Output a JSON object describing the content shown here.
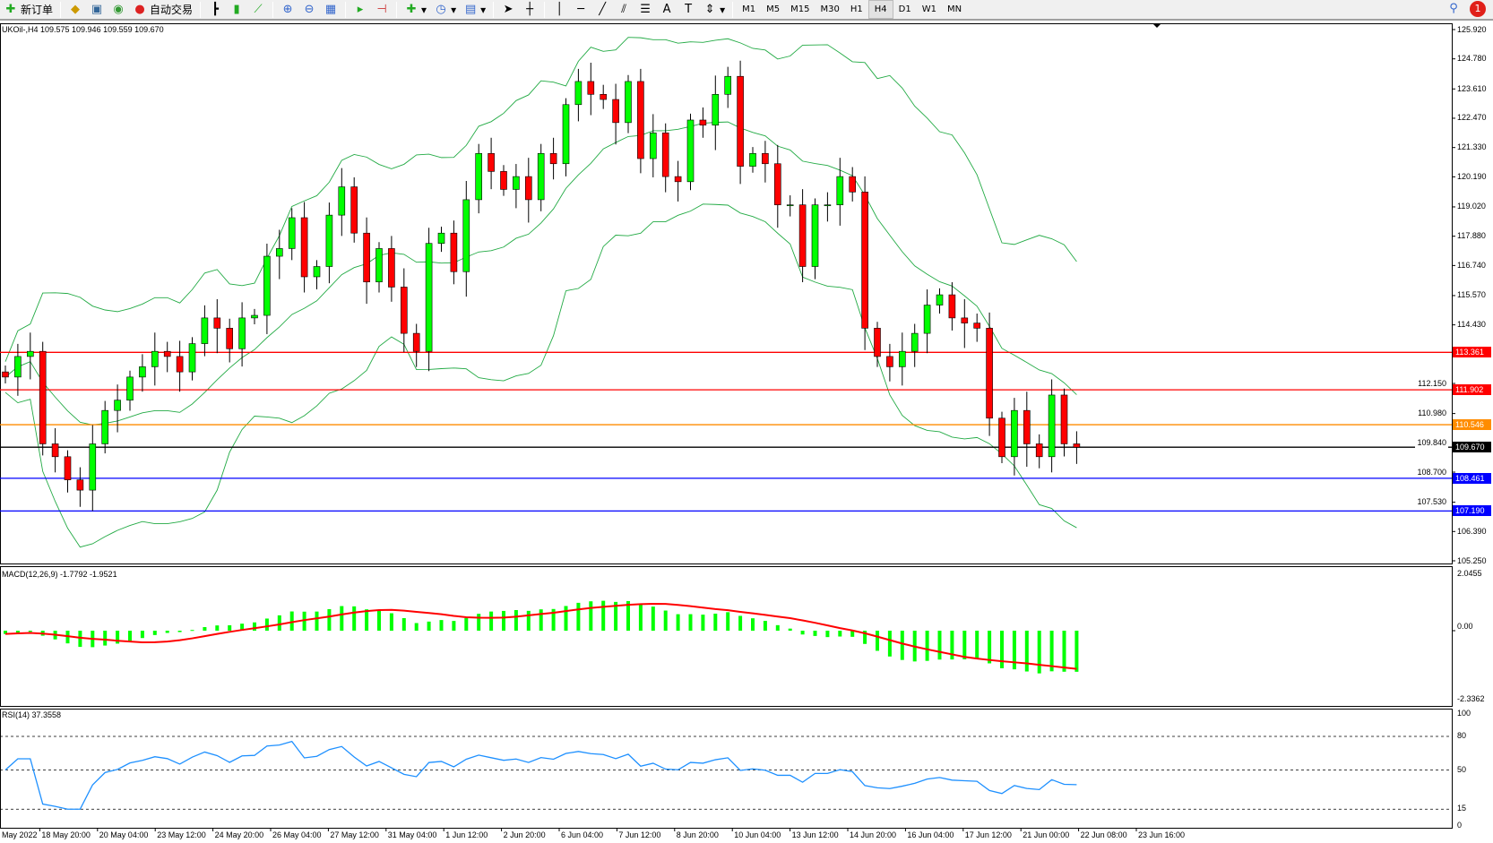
{
  "toolbar": {
    "new_order": "新订单",
    "auto_trading": "自动交易",
    "icons": [
      "new-order-icon",
      "market-watch-icon",
      "navigator-icon",
      "signals-icon",
      "auto-trading-icon",
      "bar-chart-icon",
      "candlestick-icon",
      "line-chart-icon",
      "zoom-in-icon",
      "zoom-out-icon",
      "tile-windows-icon",
      "auto-scroll-icon",
      "chart-shift-icon",
      "indicators-icon",
      "periods-icon",
      "templates-icon",
      "cursor-icon",
      "crosshair-icon",
      "vertical-line-icon",
      "horizontal-line-icon",
      "trendline-icon",
      "equidistant-channel-icon",
      "fibonacci-icon",
      "text-icon",
      "text-label-icon",
      "arrows-icon"
    ],
    "timeframes": [
      "M1",
      "M5",
      "M15",
      "M30",
      "H1",
      "H4",
      "D1",
      "W1",
      "MN"
    ],
    "active_timeframe": "H4",
    "notification_count": "1"
  },
  "chart": {
    "header": "UKOil-,H4  109.575 109.946 109.559 109.670",
    "symbol": "UKOil-",
    "timeframe": "H4",
    "ohlc": {
      "open": 109.575,
      "high": 109.946,
      "low": 109.559,
      "close": 109.67
    },
    "price_axis": [
      "125.920",
      "124.780",
      "123.610",
      "122.470",
      "121.330",
      "120.190",
      "119.020",
      "117.880",
      "116.740",
      "115.570",
      "114.430",
      "112.150",
      "110.980",
      "109.840",
      "108.700",
      "107.530",
      "106.390",
      "105.250"
    ],
    "price_range": [
      105.25,
      125.92
    ],
    "levels": [
      {
        "price": "113.361",
        "color": "#ff0000"
      },
      {
        "price": "111.902",
        "color": "#ff0000"
      },
      {
        "price": "110.546",
        "color": "#ff8c00"
      },
      {
        "price": "109.670",
        "color": "#000000"
      },
      {
        "price": "108.461",
        "color": "#0000ff"
      },
      {
        "price": "107.190",
        "color": "#0000ff"
      }
    ],
    "closes": [
      112.4,
      113.2,
      113.4,
      109.8,
      109.3,
      108.4,
      108.0,
      109.8,
      111.1,
      111.5,
      112.4,
      112.8,
      113.4,
      113.2,
      112.6,
      113.7,
      114.7,
      114.3,
      113.5,
      114.7,
      114.8,
      117.1,
      117.4,
      118.6,
      116.3,
      116.7,
      118.7,
      119.8,
      118.0,
      116.1,
      117.4,
      115.9,
      114.1,
      113.4,
      117.6,
      118.0,
      116.5,
      119.3,
      121.1,
      120.4,
      119.7,
      120.2,
      119.3,
      121.1,
      120.7,
      123.0,
      123.9,
      123.4,
      123.2,
      122.3,
      123.9,
      120.9,
      121.9,
      120.2,
      120.0,
      122.4,
      122.2,
      123.4,
      124.1,
      120.6,
      121.1,
      120.7,
      119.1,
      119.1,
      116.7,
      119.1,
      119.1,
      120.2,
      119.6,
      114.3,
      113.2,
      112.8,
      113.4,
      114.1,
      115.2,
      115.6,
      114.7,
      114.5,
      114.3,
      110.8,
      109.3,
      111.1,
      109.8,
      109.3,
      111.7,
      109.8,
      109.67
    ],
    "colors": {
      "bull": "#00ff00",
      "bear": "#ff0000",
      "bands": "#22aa44",
      "macd_hist": "#00ff00",
      "macd_signal": "#ff0000",
      "rsi": "#1e90ff"
    }
  },
  "macd": {
    "label": "MACD(12,26,9) -1.7792 -1.9521",
    "axis": [
      "2.0455",
      "0.00",
      "-2.3362"
    ]
  },
  "rsi": {
    "label": "RSI(14) 37.3558",
    "axis": [
      "100",
      "80",
      "50",
      "15",
      "0"
    ]
  },
  "time_axis": [
    "May 2022",
    "18 May 20:00",
    "20 May 04:00",
    "23 May 12:00",
    "24 May 20:00",
    "26 May 04:00",
    "27 May 12:00",
    "31 May 04:00",
    "1 Jun 12:00",
    "2 Jun 20:00",
    "6 Jun 04:00",
    "7 Jun 12:00",
    "8 Jun 20:00",
    "10 Jun 04:00",
    "13 Jun 12:00",
    "14 Jun 20:00",
    "16 Jun 04:00",
    "17 Jun 12:00",
    "21 Jun 00:00",
    "22 Jun 08:00",
    "23 Jun 16:00"
  ]
}
